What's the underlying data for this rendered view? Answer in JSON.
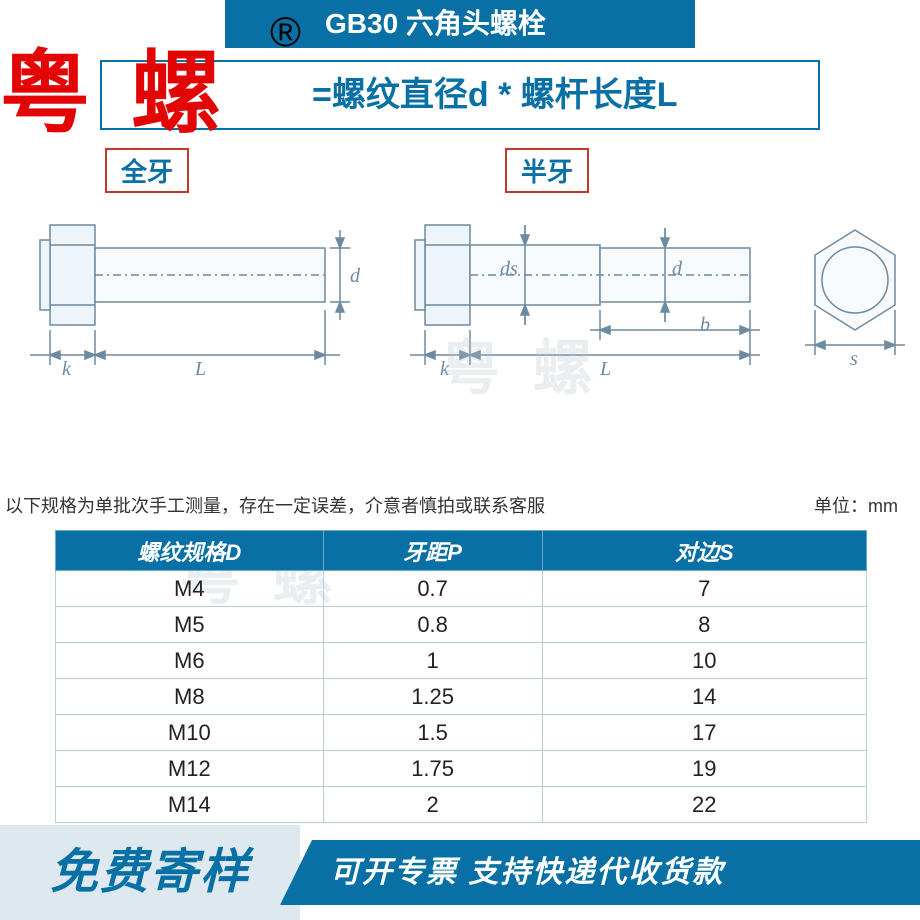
{
  "header": {
    "title": "GB30 六角头螺栓",
    "formula": "=螺纹直径d * 螺杆长度L",
    "brand": "粤 螺",
    "reg_mark": "®"
  },
  "diagram": {
    "tag_full": "全牙",
    "tag_half": "半牙",
    "labels": {
      "d": "d",
      "ds": "ds",
      "k": "k",
      "L": "L",
      "b": "b",
      "s": "s"
    },
    "colors": {
      "line": "#6d8aa0",
      "fill": "#f7fbfe"
    }
  },
  "watermark": "粤 螺",
  "notes": {
    "left": "以下规格为单批次手工测量，存在一定误差，介意者慎拍或联系客服",
    "right": "单位：mm"
  },
  "table": {
    "headers": [
      "螺纹规格D",
      "牙距P",
      "对边S"
    ],
    "rows": [
      [
        "M4",
        "0.7",
        "7"
      ],
      [
        "M5",
        "0.8",
        "8"
      ],
      [
        "M6",
        "1",
        "10"
      ],
      [
        "M8",
        "1.25",
        "14"
      ],
      [
        "M10",
        "1.5",
        "17"
      ],
      [
        "M12",
        "1.75",
        "19"
      ],
      [
        "M14",
        "2",
        "22"
      ]
    ],
    "header_bg": "#0970a5",
    "header_text": "#ffffff",
    "border_color": "#b8cedd"
  },
  "footer": {
    "left": "免费寄样",
    "right": "可开专票 支持快递代收货款",
    "left_bg": "#dde8ef",
    "left_text": "#0970a5",
    "right_bg": "#0970a5",
    "right_text": "#ffffff"
  }
}
